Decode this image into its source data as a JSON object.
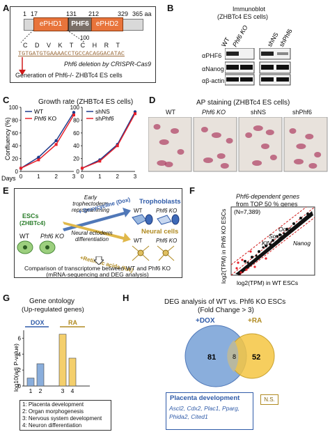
{
  "panels": {
    "A": {
      "label": "A",
      "pos": [
        "1",
        "17",
        "131",
        "212",
        "329",
        "365 aa"
      ],
      "domains": [
        "ePHD1",
        "PHF6",
        "ePHD2"
      ],
      "aa_seq": "C D V K T C H R T",
      "aa_num": "100",
      "dna_seq": "TGTGATGTGAAAACCTGCCACAGGACATAC",
      "deletion_note": "Phf6 deletion by CRISPR-Cas9",
      "generation_note": "Generation of Phf6-/- ZHBTc4 ES cells"
    },
    "B": {
      "label": "B",
      "title": "Immunoblot",
      "subtitle": "(ZHBTc4 ES cells)",
      "lanes": [
        "WT",
        "Phf6 KO",
        "shNS",
        "shPhf6"
      ],
      "rows": [
        "αPHF6",
        "αNanog",
        "αβ-actin"
      ]
    },
    "C": {
      "label": "C",
      "title": "Growth rate (ZHBTc4 ES cells)",
      "ylabel": "Confluency (%)",
      "xlabel": "Days"
    },
    "D": {
      "label": "D",
      "title": "AP staining (ZHBTc4 ES cells)",
      "columns": [
        "WT",
        "Phf6 KO",
        "shNS",
        "shPhf6"
      ]
    },
    "E": {
      "label": "E",
      "escs": "ESCs",
      "escs_sub": "(ZHBTc4)",
      "wt": "WT",
      "ko": "Phf6 KO",
      "upper_arrow_top": "Early trophectoderm reprogramming",
      "upper_arrow_label": "+ Doxycycline (Dox)",
      "lower_arrow_top": "Neural ectoderm differentiation",
      "lower_arrow_label": "+Retinoic acids (RA)",
      "troph": "Trophoblasts",
      "neural": "Neural cells",
      "footer1": "Comparison of transcriptome between WT and Phf6 KO",
      "footer2": "(mRNA-sequencing and DEG analysis)"
    },
    "F": {
      "label": "F",
      "title1": "Phf6-dependent genes",
      "title2": "from TOP 50 % genes",
      "n": "(N=7,389)",
      "genes": [
        "Oct4",
        "Sox2",
        "Klf4",
        "Nanog"
      ],
      "ylabel": "log2(TPM) in Phf6 KO ESCs",
      "xlabel": "log2(TPM) in WT ESCs"
    },
    "G": {
      "label": "G",
      "title1": "Gene ontology",
      "title2": "(Up-regulated genes)",
      "ylabel": "log10(adj P-value)",
      "group_dox": "DOX",
      "group_ra": "RA",
      "bar_labels": [
        "1",
        "2",
        "3",
        "4"
      ],
      "legend": [
        "1: Placenta development",
        "2: Organ morphogenesis",
        "3: Nervous system development",
        "4: Neuron differentiation"
      ]
    },
    "H": {
      "label": "H",
      "title1": "DEG analysis of WT vs. Phf6 KO ESCs",
      "title2": "(Fold Change > 3)",
      "dox": "+DOX",
      "ra": "+RA",
      "left_count": "81",
      "overlap": "8",
      "right_count": "52",
      "placenta_title": "Placenta development",
      "placenta_genes1": "Ascl2, Cdx2, Plac1, Pparg,",
      "placenta_genes2": "Phida2, Cited1",
      "ns": "N.S."
    }
  },
  "chart_data": [
    {
      "type": "line",
      "title": "Growth rate (ZHBTc4 ES cells)",
      "ylabel": "Confluency (%)",
      "xlabel": "Days",
      "x": [
        0,
        1,
        2,
        3
      ],
      "ylim": [
        0,
        100
      ],
      "series": [
        {
          "name": "WT",
          "values": [
            5,
            22,
            48,
            92
          ]
        },
        {
          "name": "Phf6 KO",
          "values": [
            5,
            18,
            42,
            88
          ]
        }
      ]
    },
    {
      "type": "line",
      "x": [
        0,
        1,
        2,
        3
      ],
      "ylim": [
        0,
        100
      ],
      "series": [
        {
          "name": "shNS",
          "values": [
            5,
            18,
            42,
            93
          ]
        },
        {
          "name": "shPhf6",
          "values": [
            5,
            16,
            40,
            90
          ]
        }
      ]
    },
    {
      "type": "bar",
      "ylabel": "log10(adj P-value)",
      "categories": [
        "1",
        "2",
        "3",
        "4"
      ],
      "values": [
        1.0,
        2.8,
        6.5,
        3.5
      ],
      "ylim": [
        0,
        7
      ]
    }
  ],
  "colors": {
    "phf6": "#7a6e66",
    "ephd": "#e8743b",
    "wt": "#1f3a8a",
    "ko": "#e8202a",
    "troph": "#2e5aa8",
    "neural": "#c8a230",
    "venn_left": "#8aaedc",
    "venn_right": "#f4c542",
    "bar": "#8aaedc",
    "bar2": "#f4cf6c"
  }
}
